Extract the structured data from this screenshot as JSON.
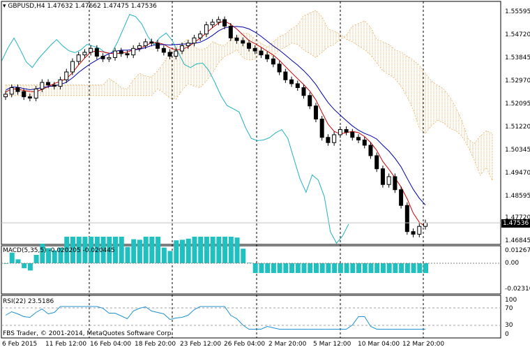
{
  "main_header": {
    "symbol": "GBPUSD,H4",
    "ohlc": "1.47632 1.47662 1.47475 1.47536"
  },
  "macd_header": "MACD(5,35,5) -0.020205 -0.020445",
  "rsi_header": "RSI(22) 23.5186",
  "copyright": "FBS Trader, © 2001-2014, MetaQuotes Software Corp.",
  "price_axis": [
    "1.55595",
    "1.54720",
    "1.53845",
    "1.52970",
    "1.52095",
    "1.51220",
    "1.50345",
    "1.49470",
    "1.48595",
    "1.47720",
    "1.46845"
  ],
  "current_price": "1.47536",
  "macd_axis": [
    "0.012673",
    "0.00",
    "-0.023108"
  ],
  "rsi_axis": [
    "100",
    "70",
    "30",
    "0"
  ],
  "time_axis": [
    "6 Feb 2015",
    "11 Feb 12:00",
    "16 Feb 04:00",
    "18 Feb 20:00",
    "23 Feb 12:00",
    "26 Feb 04:00",
    "2 Mar 20:00",
    "5 Mar 12:00",
    "10 Mar 04:00",
    "12 Mar 20:00"
  ],
  "colors": {
    "tenkan": "#cc0000",
    "kijun": "#0000aa",
    "chikou": "#20b2c0",
    "cloud_up": "#e0a040",
    "cloud_down": "#d8b8d8",
    "macd_hist": "#20c0c0",
    "macd_signal": "#cc0000",
    "rsi_line": "#2090d0"
  },
  "chart_data": {
    "type": "candlestick",
    "title": "GBPUSD,H4",
    "ylim": [
      1.46845,
      1.55595
    ],
    "close_series_approx": [
      1.5245,
      1.527,
      1.5255,
      1.5235,
      1.523,
      1.5265,
      1.529,
      1.528,
      1.5275,
      1.53,
      1.533,
      1.537,
      1.5395,
      1.5405,
      1.542,
      1.539,
      1.538,
      1.5385,
      1.541,
      1.54,
      1.5395,
      1.542,
      1.543,
      1.5445,
      1.544,
      1.542,
      1.5405,
      1.539,
      1.541,
      1.543,
      1.544,
      1.546,
      1.5475,
      1.551,
      1.552,
      1.553,
      1.5505,
      1.546,
      1.545,
      1.544,
      1.542,
      1.541,
      1.5395,
      1.538,
      1.536,
      1.533,
      1.53,
      1.5285,
      1.527,
      1.524,
      1.52,
      1.515,
      1.508,
      1.506,
      1.509,
      1.511,
      1.51,
      1.508,
      1.507,
      1.505,
      1.501,
      1.496,
      1.49,
      1.493,
      1.488,
      1.482,
      1.472,
      1.471,
      1.474,
      1.47536
    ],
    "rsi_last": 23.5186,
    "macd_last": -0.020205,
    "macd_signal_last": -0.020445
  }
}
